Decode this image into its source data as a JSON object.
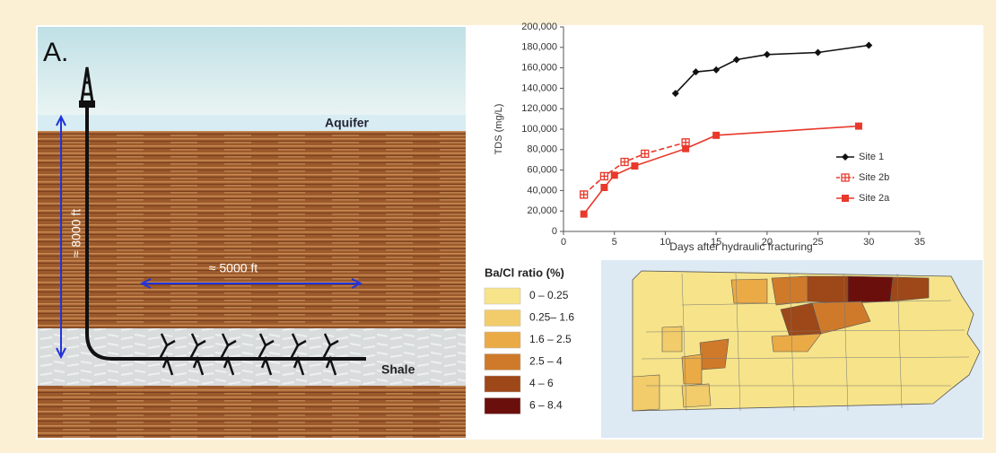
{
  "chart_data": {
    "type": "line",
    "y_label": "TDS (mg/L)",
    "x_label": "Days after hydraulic fracturing",
    "xlim": [
      0,
      35
    ],
    "xticks": [
      0,
      5,
      10,
      15,
      20,
      25,
      30,
      35
    ],
    "ylim": [
      0,
      200000
    ],
    "yticks": [
      0,
      {
        "value": 20000,
        "label": "20,000"
      },
      {
        "value": 40000,
        "label": "40,000"
      },
      {
        "value": 60000,
        "label": "60,000"
      },
      {
        "value": 80000,
        "label": "80,000"
      },
      {
        "value": 100000,
        "label": "100,000"
      },
      {
        "value": 120000,
        "label": "120,000"
      },
      {
        "value": 140000,
        "label": "140,000"
      },
      {
        "value": 160000,
        "label": "160,000"
      },
      {
        "value": 180000,
        "label": "180,000"
      },
      {
        "value": 200000,
        "label": "200,000"
      }
    ],
    "legend": "right",
    "series": [
      {
        "name": "Site 1",
        "color": "#111111",
        "marker": "diamond",
        "dashed": false,
        "x": [
          11,
          13,
          15,
          17,
          20,
          25,
          30
        ],
        "values": [
          135000,
          156000,
          158000,
          168000,
          173000,
          175000,
          182000
        ]
      },
      {
        "name": "Site 2b",
        "color": "#e8392b",
        "marker": "open-square",
        "dashed": true,
        "x": [
          2,
          4,
          6,
          8,
          12
        ],
        "values": [
          36000,
          54000,
          68000,
          76000,
          87000
        ]
      },
      {
        "name": "Site 2a",
        "color": "#e8392b",
        "marker": "square",
        "dashed": false,
        "x": [
          2,
          4,
          5,
          7,
          12,
          15,
          29
        ],
        "values": [
          17000,
          43000,
          55000,
          64000,
          81000,
          94000,
          103000
        ]
      }
    ]
  },
  "diagram": {
    "panel": "A.",
    "aquifer": "Aquifer",
    "depth": "≈ 8000 ft",
    "lateral": "≈ 5000 ft",
    "shale": "Shale"
  },
  "map": {
    "legend_title": "Ba/Cl ratio (%)",
    "classes": [
      {
        "label": "0 – 0.25",
        "color": "#f7e48a"
      },
      {
        "label": "0.25– 1.6",
        "color": "#f2cc6a"
      },
      {
        "label": "1.6 – 2.5",
        "color": "#eaaa45"
      },
      {
        "label": "2.5 – 4",
        "color": "#cf7a2a"
      },
      {
        "label": "4 – 6",
        "color": "#9e4718"
      },
      {
        "label": "6 – 8.4",
        "color": "#6b0f0c"
      }
    ]
  }
}
